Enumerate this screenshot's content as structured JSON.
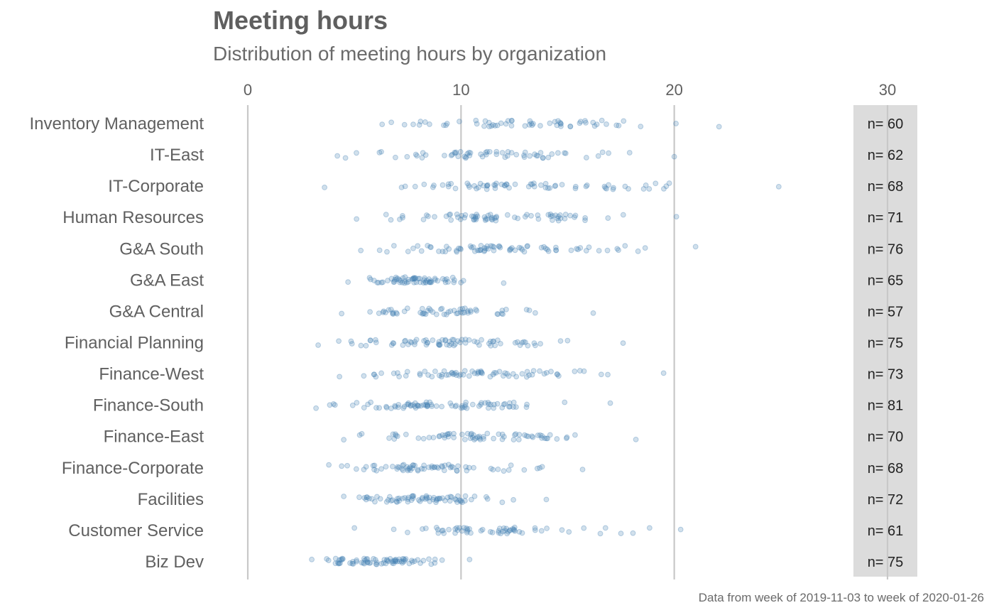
{
  "title": "Meeting hours",
  "subtitle": "Distribution of meeting hours by organization",
  "caption": "Data from week of 2019-11-03 to week of 2020-01-26",
  "colors": {
    "point": "#4682b4",
    "grid": "#c8c8c8",
    "count_band": "#dcdcdc",
    "text": "#606060"
  },
  "chart_data": {
    "type": "scatter",
    "xlim": [
      0,
      30
    ],
    "xticks": [
      "0",
      "10",
      "20",
      "30"
    ],
    "grid": true,
    "categories": [
      "Inventory Management",
      "IT-East",
      "IT-Corporate",
      "Human Resources",
      "G&A South",
      "G&A East",
      "G&A Central",
      "Financial Planning",
      "Finance-West",
      "Finance-South",
      "Finance-East",
      "Finance-Corporate",
      "Facilities",
      "Customer Service",
      "Biz Dev"
    ],
    "count_labels": [
      "n= 60",
      "n= 62",
      "n= 68",
      "n= 71",
      "n= 76",
      "n= 65",
      "n= 57",
      "n= 75",
      "n= 73",
      "n= 81",
      "n= 70",
      "n= 68",
      "n= 72",
      "n= 61",
      "n= 75"
    ],
    "series": [
      {
        "category": "Inventory Management",
        "x_range": [
          6.3,
          22.1
        ],
        "n": 60
      },
      {
        "category": "IT-East",
        "x_range": [
          4.2,
          20.0
        ],
        "n": 62
      },
      {
        "category": "IT-Corporate",
        "x_range": [
          3.6,
          24.9
        ],
        "n": 68
      },
      {
        "category": "Human Resources",
        "x_range": [
          5.1,
          20.1
        ],
        "n": 71
      },
      {
        "category": "G&A South",
        "x_range": [
          5.3,
          21.0
        ],
        "n": 76
      },
      {
        "category": "G&A East",
        "x_range": [
          4.7,
          12.0
        ],
        "n": 65
      },
      {
        "category": "G&A Central",
        "x_range": [
          4.4,
          16.2
        ],
        "n": 57
      },
      {
        "category": "Financial Planning",
        "x_range": [
          3.3,
          17.6
        ],
        "n": 75
      },
      {
        "category": "Finance-West",
        "x_range": [
          4.3,
          19.5
        ],
        "n": 73
      },
      {
        "category": "Finance-South",
        "x_range": [
          3.2,
          17.0
        ],
        "n": 81
      },
      {
        "category": "Finance-East",
        "x_range": [
          4.5,
          18.2
        ],
        "n": 70
      },
      {
        "category": "Finance-Corporate",
        "x_range": [
          3.8,
          15.7
        ],
        "n": 68
      },
      {
        "category": "Facilities",
        "x_range": [
          4.5,
          14.0
        ],
        "n": 72
      },
      {
        "category": "Customer Service",
        "x_range": [
          5.0,
          20.3
        ],
        "n": 61
      },
      {
        "category": "Biz Dev",
        "x_range": [
          3.0,
          10.4
        ],
        "n": 75
      }
    ]
  }
}
